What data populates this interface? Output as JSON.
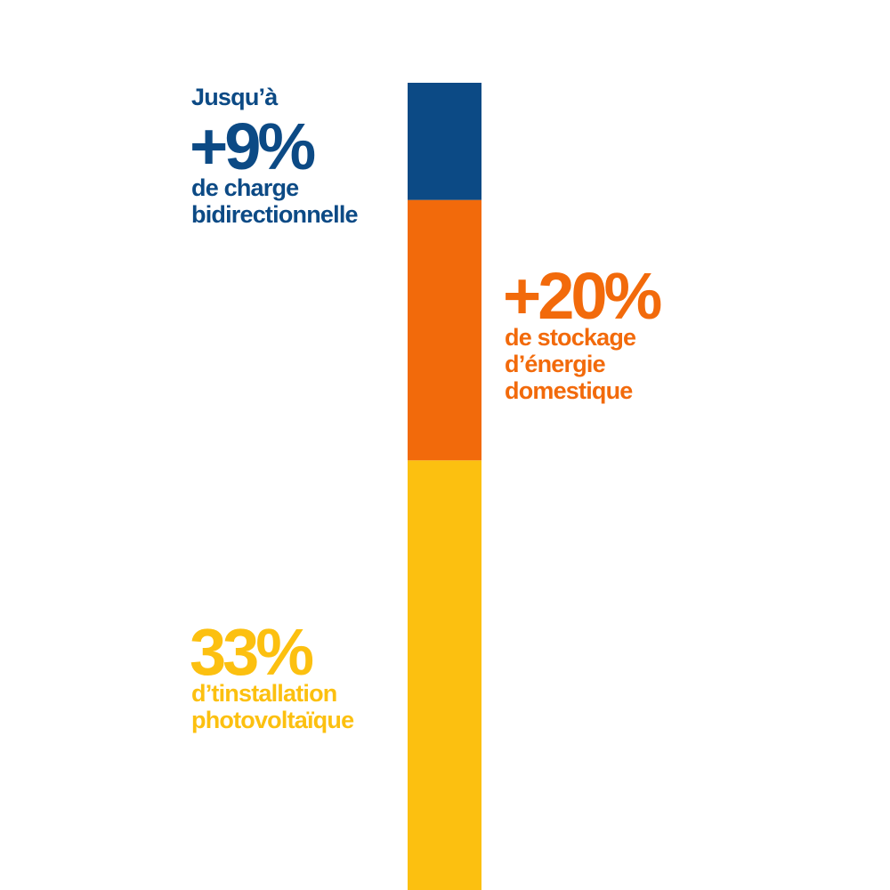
{
  "chart_data": {
    "type": "stacked-bar",
    "series": [
      {
        "color": "#fcc010",
        "values": [
          33
        ],
        "value_labels": [
          "33%"
        ],
        "description": [
          "d’tinstallation",
          "photovoltaïque"
        ]
      },
      {
        "color": "#f26a0b",
        "values": [
          20
        ],
        "value_labels": [
          "+20%"
        ],
        "description": [
          "de stockage",
          "d’énergie",
          "domestique"
        ]
      },
      {
        "color": "#0c4a85",
        "values": [
          9
        ],
        "value_labels": [
          "+9%"
        ],
        "prefix": "Jusqu’à",
        "description": [
          "de charge",
          "bidirectionnelle"
        ]
      }
    ]
  }
}
